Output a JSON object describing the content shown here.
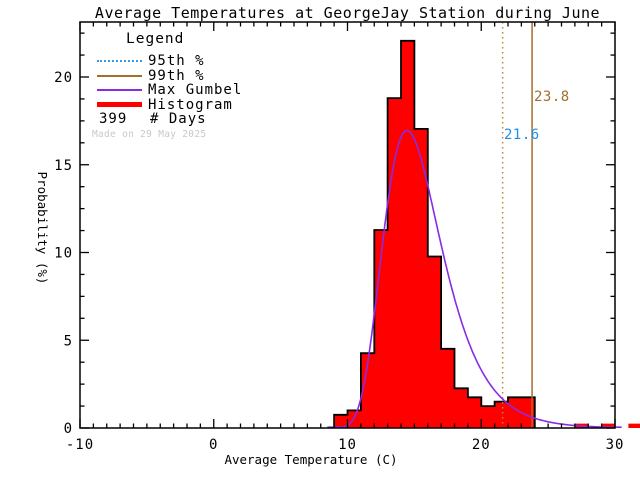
{
  "legend": {
    "title": "Legend",
    "items": [
      {
        "label": "95th %",
        "style": "dotted",
        "color": "#3D97E0"
      },
      {
        "label": "99th %",
        "style": "solid",
        "color": "#A1702D"
      },
      {
        "label": "Max Gumbel",
        "style": "solid",
        "color": "#8A2BE2"
      },
      {
        "label": "Histogram",
        "style": "thick",
        "color": "#FF0000"
      },
      {
        "value": "399",
        "label": "# Days",
        "style": "text"
      }
    ],
    "made_on": "Made on 29 May 2025",
    "made_on_color": "#C8C8C8"
  },
  "chart_data": {
    "type": "bar",
    "title": "Average Temperatures at GeorgeJay Station during June",
    "xlabel": "Average Temperature (C)",
    "ylabel": "Probability (%)",
    "xlim": [
      -10,
      30
    ],
    "ylim": [
      0,
      23.1
    ],
    "x_major_ticks": [
      -10,
      0,
      10,
      20,
      30
    ],
    "x_minor_step": 1,
    "y_major_ticks": [
      0,
      5,
      10,
      15,
      20
    ],
    "y_minor_step": 1.25,
    "n_days": 399,
    "bins": {
      "start": 9,
      "width": 1,
      "count": 23
    },
    "values_pct": [
      0.75,
      1.0,
      4.26,
      11.28,
      18.8,
      22.06,
      17.04,
      9.77,
      4.51,
      2.26,
      1.75,
      1.25,
      1.5,
      1.75,
      1.75,
      0,
      0,
      0,
      0.25,
      0,
      0.25,
      0,
      0.25
    ],
    "outline_end_x": 24,
    "colors": {
      "histogram_fill": "#FF0000",
      "histogram_outline": "#000000",
      "gumbel_curve": "#8A2BE2",
      "axis": "#000000"
    },
    "series": [
      {
        "name": "Histogram",
        "kind": "histogram_pct"
      },
      {
        "name": "Max Gumbel",
        "kind": "gumbel_pdf",
        "mu": 14.45,
        "beta": 2.17,
        "peak_pct": 16.9
      }
    ],
    "annotations": {
      "p95": {
        "label": "21.6",
        "x": 21.6,
        "style": "dotted",
        "line_color": "#C8862E",
        "label_color": "#1E8FE8"
      },
      "p99": {
        "label": "23.8",
        "x": 23.8,
        "style": "solid",
        "line_color": "#A1702D",
        "label_color": "#A1702D"
      }
    }
  }
}
